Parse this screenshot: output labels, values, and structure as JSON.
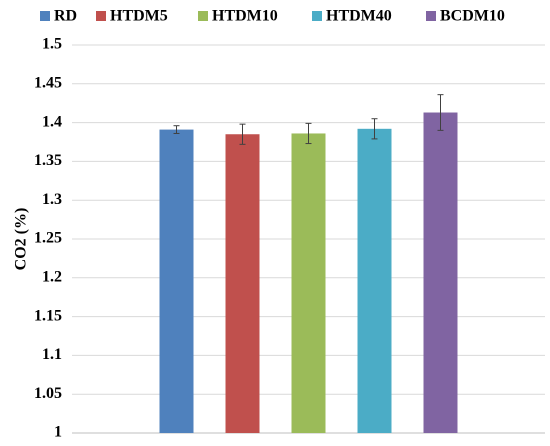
{
  "chart_data": {
    "type": "bar",
    "y_label": "CO2 (%)",
    "categories": [
      null
    ],
    "series": [
      {
        "name": "RD",
        "color": "#4f81bd",
        "values": [
          1.391
        ],
        "errors": [
          0.005
        ]
      },
      {
        "name": "HTDM5",
        "color": "#c0504d",
        "values": [
          1.385
        ],
        "errors": [
          0.013
        ]
      },
      {
        "name": "HTDM10",
        "color": "#9bbb59",
        "values": [
          1.386
        ],
        "errors": [
          0.013
        ]
      },
      {
        "name": "HTDM40",
        "color": "#4bacc6",
        "values": [
          1.392
        ],
        "errors": [
          0.013
        ]
      },
      {
        "name": "BCDM10",
        "color": "#8064a2",
        "values": [
          1.413
        ],
        "errors": [
          0.023
        ]
      }
    ],
    "ylim": [
      1,
      1.5
    ],
    "yticks": [
      1,
      1.05,
      1.1,
      1.15,
      1.2,
      1.25,
      1.3,
      1.35,
      1.4,
      1.45,
      1.5
    ],
    "grid": true,
    "legend": "top"
  }
}
